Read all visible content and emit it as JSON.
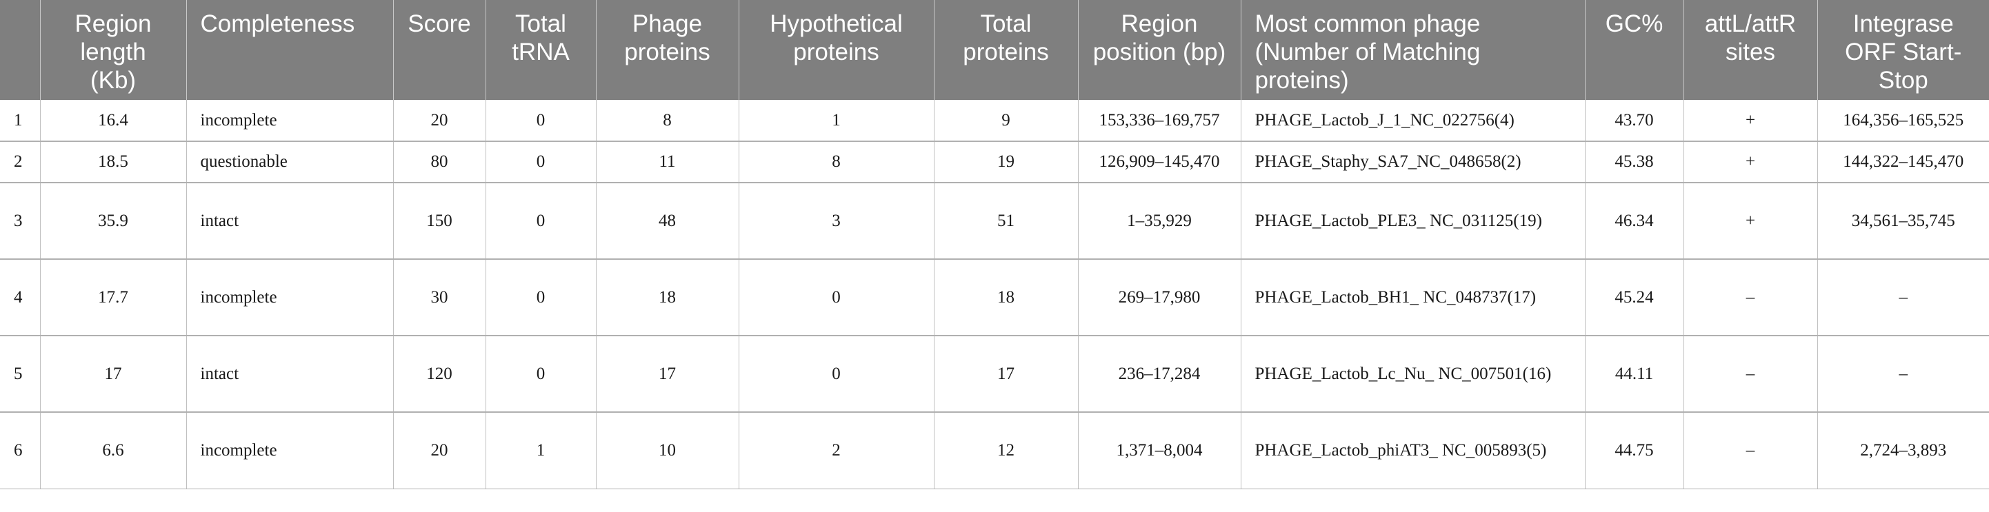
{
  "table": {
    "headers": [
      "",
      "Region length (Kb)",
      "Completeness",
      "Score",
      "Total tRNA",
      "Phage proteins",
      "Hypothetical proteins",
      "Total proteins",
      "Region position (bp)",
      "Most common phage (Number of Matching proteins)",
      "GC%",
      "attL/attR sites",
      "Integrase ORF Start-Stop"
    ],
    "rows": [
      [
        "1",
        "16.4",
        "incomplete",
        "20",
        "0",
        "8",
        "1",
        "9",
        "153,336–169,757",
        "PHAGE_Lactob_J_1_NC_022756(4)",
        "43.70",
        "+",
        "164,356–165,525"
      ],
      [
        "2",
        "18.5",
        "questionable",
        "80",
        "0",
        "11",
        "8",
        "19",
        "126,909–145,470",
        "PHAGE_Staphy_SA7_NC_048658(2)",
        "45.38",
        "+",
        "144,322–145,470"
      ],
      [
        "3",
        "35.9",
        "intact",
        "150",
        "0",
        "48",
        "3",
        "51",
        "1–35,929",
        "PHAGE_Lactob_PLE3_ NC_031125(19)",
        "46.34",
        "+",
        "34,561–35,745"
      ],
      [
        "4",
        "17.7",
        "incomplete",
        "30",
        "0",
        "18",
        "0",
        "18",
        "269–17,980",
        "PHAGE_Lactob_BH1_ NC_048737(17)",
        "45.24",
        "–",
        "–"
      ],
      [
        "5",
        "17",
        "intact",
        "120",
        "0",
        "17",
        "0",
        "17",
        "236–17,284",
        "PHAGE_Lactob_Lc_Nu_ NC_007501(16)",
        "44.11",
        "–",
        "–"
      ],
      [
        "6",
        "6.6",
        "incomplete",
        "20",
        "1",
        "10",
        "2",
        "12",
        "1,371–8,004",
        "PHAGE_Lactob_phiAT3_ NC_005893(5)",
        "44.75",
        "–",
        "2,724–3,893"
      ]
    ]
  }
}
